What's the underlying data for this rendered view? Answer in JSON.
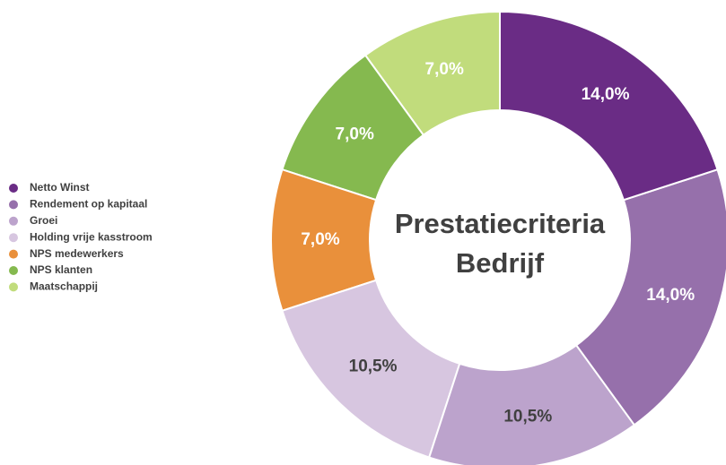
{
  "chart_data": {
    "type": "donut",
    "title": [
      "Prestatiecriteria",
      "Bedrijf"
    ],
    "categories": [
      "Netto Winst",
      "Rendement op kapitaal",
      "Groei",
      "Holding vrije kasstroom",
      "NPS medewerkers",
      "NPS klanten",
      "Maatschappij"
    ],
    "values": [
      14,
      14,
      10.5,
      10.5,
      7,
      7,
      7
    ],
    "value_labels": [
      "14,0%",
      "14,0%",
      "10,5%",
      "10,5%",
      "7,0%",
      "7,0%",
      "7,0%"
    ],
    "colors": [
      "#6a2c85",
      "#9670ab",
      "#bca3cc",
      "#d7c6e0",
      "#e9903b",
      "#85b94f",
      "#c1dc7c"
    ],
    "legend": "left"
  }
}
